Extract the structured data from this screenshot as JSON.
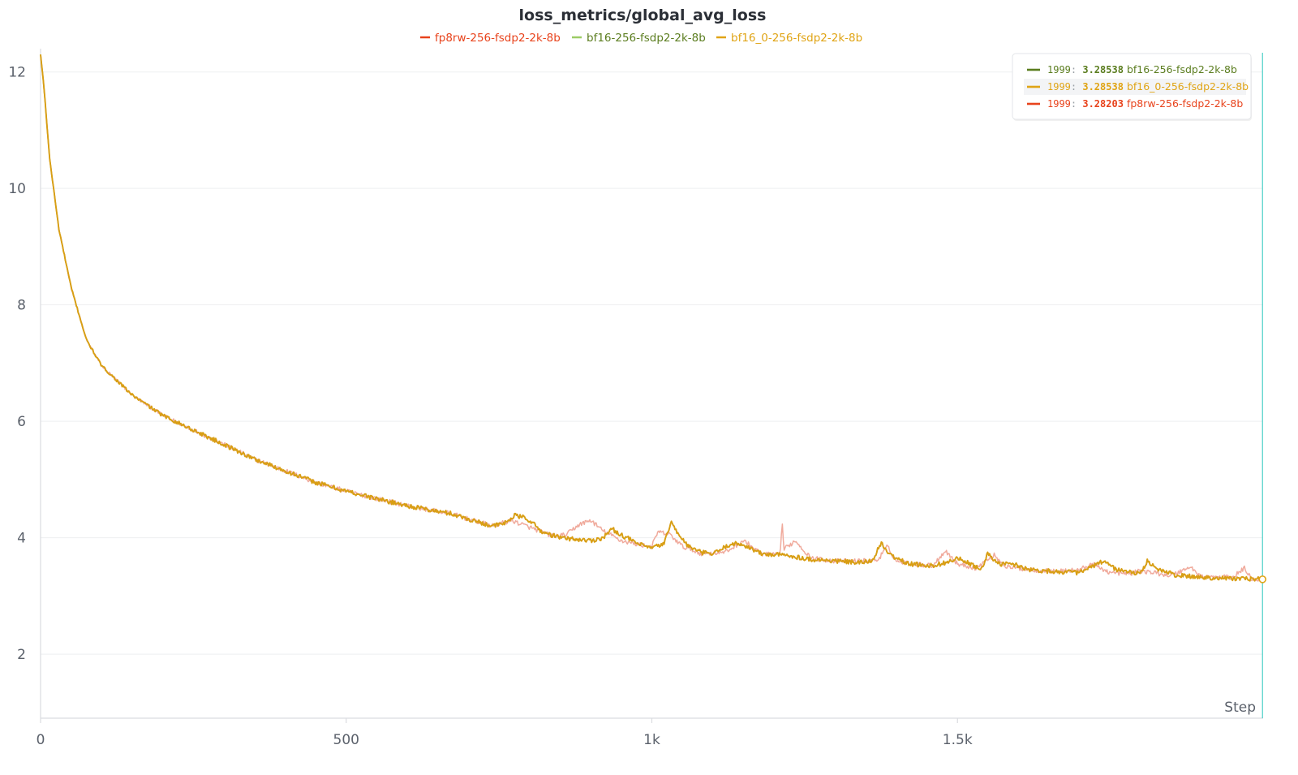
{
  "chart_data": {
    "type": "line",
    "title": "loss_metrics/global_avg_loss",
    "xlabel": "Step",
    "ylabel": "",
    "xlim": [
      0,
      2000
    ],
    "ylim": [
      0.9,
      12.4
    ],
    "x_ticks": [
      {
        "value": 0,
        "label": "0"
      },
      {
        "value": 500,
        "label": "500"
      },
      {
        "value": 1000,
        "label": "1k"
      },
      {
        "value": 1500,
        "label": "1.5k"
      }
    ],
    "y_ticks": [
      {
        "value": 2,
        "label": "2"
      },
      {
        "value": 4,
        "label": "4"
      },
      {
        "value": 6,
        "label": "6"
      },
      {
        "value": 8,
        "label": "8"
      },
      {
        "value": 10,
        "label": "10"
      },
      {
        "value": 12,
        "label": "12"
      }
    ],
    "grid": true,
    "legend_position": "top-center",
    "series": [
      {
        "name": "fp8rw-256-fsdp2-2k-8b",
        "color": "#e8431c",
        "line_color": "#f0aa9c",
        "points": [
          [
            0,
            12.3
          ],
          [
            5,
            11.8
          ],
          [
            15,
            10.5
          ],
          [
            30,
            9.3
          ],
          [
            50,
            8.3
          ],
          [
            75,
            7.4
          ],
          [
            100,
            6.95
          ],
          [
            150,
            6.45
          ],
          [
            200,
            6.1
          ],
          [
            250,
            5.85
          ],
          [
            300,
            5.6
          ],
          [
            350,
            5.35
          ],
          [
            400,
            5.15
          ],
          [
            450,
            4.95
          ],
          [
            500,
            4.8
          ],
          [
            550,
            4.67
          ],
          [
            600,
            4.55
          ],
          [
            650,
            4.45
          ],
          [
            670,
            4.42
          ],
          [
            700,
            4.32
          ],
          [
            740,
            4.2
          ],
          [
            770,
            4.3
          ],
          [
            800,
            4.18
          ],
          [
            840,
            4.02
          ],
          [
            860,
            4.05
          ],
          [
            880,
            4.22
          ],
          [
            900,
            4.3
          ],
          [
            920,
            4.12
          ],
          [
            950,
            3.95
          ],
          [
            980,
            3.88
          ],
          [
            1000,
            3.85
          ],
          [
            1010,
            4.1
          ],
          [
            1030,
            4.05
          ],
          [
            1050,
            3.85
          ],
          [
            1080,
            3.73
          ],
          [
            1120,
            3.75
          ],
          [
            1150,
            3.95
          ],
          [
            1180,
            3.72
          ],
          [
            1210,
            3.7
          ],
          [
            1213,
            4.3
          ],
          [
            1216,
            3.8
          ],
          [
            1235,
            3.95
          ],
          [
            1260,
            3.65
          ],
          [
            1300,
            3.6
          ],
          [
            1340,
            3.6
          ],
          [
            1370,
            3.62
          ],
          [
            1385,
            3.85
          ],
          [
            1400,
            3.6
          ],
          [
            1430,
            3.55
          ],
          [
            1460,
            3.52
          ],
          [
            1480,
            3.78
          ],
          [
            1500,
            3.55
          ],
          [
            1530,
            3.48
          ],
          [
            1560,
            3.7
          ],
          [
            1580,
            3.5
          ],
          [
            1620,
            3.45
          ],
          [
            1660,
            3.42
          ],
          [
            1700,
            3.45
          ],
          [
            1720,
            3.55
          ],
          [
            1750,
            3.4
          ],
          [
            1780,
            3.38
          ],
          [
            1800,
            3.43
          ],
          [
            1820,
            3.4
          ],
          [
            1850,
            3.35
          ],
          [
            1880,
            3.5
          ],
          [
            1900,
            3.33
          ],
          [
            1950,
            3.32
          ],
          [
            1970,
            3.48
          ],
          [
            1980,
            3.3
          ],
          [
            1999,
            3.28203
          ]
        ],
        "last": {
          "step": "1999",
          "value": "3.28203"
        }
      },
      {
        "name": "bf16-256-fsdp2-2k-8b",
        "color": "#5b7d1f",
        "line_color": "#9ccc65",
        "points": [
          [
            0,
            12.3
          ],
          [
            5,
            11.8
          ],
          [
            15,
            10.5
          ],
          [
            30,
            9.3
          ],
          [
            50,
            8.3
          ],
          [
            75,
            7.4
          ],
          [
            100,
            6.95
          ],
          [
            150,
            6.45
          ],
          [
            200,
            6.1
          ],
          [
            250,
            5.85
          ],
          [
            300,
            5.6
          ],
          [
            350,
            5.35
          ],
          [
            400,
            5.15
          ],
          [
            450,
            4.95
          ],
          [
            500,
            4.8
          ],
          [
            550,
            4.67
          ],
          [
            600,
            4.55
          ],
          [
            650,
            4.45
          ],
          [
            670,
            4.42
          ],
          [
            700,
            4.32
          ],
          [
            740,
            4.2
          ],
          [
            760,
            4.25
          ],
          [
            775,
            4.38
          ],
          [
            790,
            4.35
          ],
          [
            800,
            4.3
          ],
          [
            820,
            4.1
          ],
          [
            850,
            4.0
          ],
          [
            900,
            3.95
          ],
          [
            920,
            4.0
          ],
          [
            935,
            4.15
          ],
          [
            950,
            4.05
          ],
          [
            980,
            3.88
          ],
          [
            1000,
            3.82
          ],
          [
            1020,
            3.9
          ],
          [
            1033,
            4.3
          ],
          [
            1040,
            4.1
          ],
          [
            1060,
            3.85
          ],
          [
            1080,
            3.75
          ],
          [
            1100,
            3.72
          ],
          [
            1130,
            3.9
          ],
          [
            1150,
            3.88
          ],
          [
            1180,
            3.72
          ],
          [
            1220,
            3.7
          ],
          [
            1260,
            3.63
          ],
          [
            1300,
            3.6
          ],
          [
            1340,
            3.57
          ],
          [
            1360,
            3.6
          ],
          [
            1375,
            3.9
          ],
          [
            1390,
            3.7
          ],
          [
            1420,
            3.55
          ],
          [
            1460,
            3.52
          ],
          [
            1490,
            3.6
          ],
          [
            1500,
            3.65
          ],
          [
            1520,
            3.55
          ],
          [
            1540,
            3.45
          ],
          [
            1550,
            3.75
          ],
          [
            1565,
            3.55
          ],
          [
            1590,
            3.55
          ],
          [
            1620,
            3.45
          ],
          [
            1660,
            3.42
          ],
          [
            1700,
            3.4
          ],
          [
            1720,
            3.5
          ],
          [
            1740,
            3.6
          ],
          [
            1760,
            3.45
          ],
          [
            1800,
            3.38
          ],
          [
            1810,
            3.6
          ],
          [
            1830,
            3.45
          ],
          [
            1860,
            3.35
          ],
          [
            1900,
            3.32
          ],
          [
            1950,
            3.3
          ],
          [
            1999,
            3.28538
          ]
        ],
        "last": {
          "step": "1999",
          "value": "3.28538"
        }
      },
      {
        "name": "bf16_0-256-fsdp2-2k-8b",
        "color": "#e0a415",
        "line_color": "#d99e14",
        "points": [
          [
            0,
            12.3
          ],
          [
            5,
            11.8
          ],
          [
            15,
            10.5
          ],
          [
            30,
            9.3
          ],
          [
            50,
            8.3
          ],
          [
            75,
            7.4
          ],
          [
            100,
            6.95
          ],
          [
            150,
            6.45
          ],
          [
            200,
            6.1
          ],
          [
            250,
            5.85
          ],
          [
            300,
            5.6
          ],
          [
            350,
            5.35
          ],
          [
            400,
            5.15
          ],
          [
            450,
            4.95
          ],
          [
            500,
            4.8
          ],
          [
            550,
            4.67
          ],
          [
            600,
            4.55
          ],
          [
            650,
            4.45
          ],
          [
            670,
            4.42
          ],
          [
            700,
            4.32
          ],
          [
            740,
            4.2
          ],
          [
            760,
            4.25
          ],
          [
            775,
            4.38
          ],
          [
            790,
            4.35
          ],
          [
            800,
            4.3
          ],
          [
            820,
            4.1
          ],
          [
            850,
            4.0
          ],
          [
            900,
            3.95
          ],
          [
            920,
            4.0
          ],
          [
            935,
            4.15
          ],
          [
            950,
            4.05
          ],
          [
            980,
            3.88
          ],
          [
            1000,
            3.82
          ],
          [
            1020,
            3.9
          ],
          [
            1033,
            4.3
          ],
          [
            1040,
            4.1
          ],
          [
            1060,
            3.85
          ],
          [
            1080,
            3.75
          ],
          [
            1100,
            3.72
          ],
          [
            1130,
            3.9
          ],
          [
            1150,
            3.88
          ],
          [
            1180,
            3.72
          ],
          [
            1220,
            3.7
          ],
          [
            1260,
            3.63
          ],
          [
            1300,
            3.6
          ],
          [
            1340,
            3.57
          ],
          [
            1360,
            3.6
          ],
          [
            1375,
            3.9
          ],
          [
            1390,
            3.7
          ],
          [
            1420,
            3.55
          ],
          [
            1460,
            3.52
          ],
          [
            1490,
            3.6
          ],
          [
            1500,
            3.65
          ],
          [
            1520,
            3.55
          ],
          [
            1540,
            3.45
          ],
          [
            1550,
            3.75
          ],
          [
            1565,
            3.55
          ],
          [
            1590,
            3.55
          ],
          [
            1620,
            3.45
          ],
          [
            1660,
            3.42
          ],
          [
            1700,
            3.4
          ],
          [
            1720,
            3.5
          ],
          [
            1740,
            3.6
          ],
          [
            1760,
            3.45
          ],
          [
            1800,
            3.38
          ],
          [
            1810,
            3.6
          ],
          [
            1830,
            3.45
          ],
          [
            1860,
            3.35
          ],
          [
            1900,
            3.32
          ],
          [
            1950,
            3.3
          ],
          [
            1999,
            3.28538
          ]
        ],
        "last": {
          "step": "1999",
          "value": "3.28538"
        }
      }
    ],
    "tooltip": {
      "separator": ":",
      "rows": [
        {
          "series": "bf16-256-fsdp2-2k-8b",
          "step": "1999",
          "value": "3.28538",
          "color": "#5b7d1f",
          "highlighted": false
        },
        {
          "series": "bf16_0-256-fsdp2-2k-8b",
          "step": "1999",
          "value": "3.28538",
          "color": "#e0a415",
          "highlighted": true
        },
        {
          "series": "fp8rw-256-fsdp2-2k-8b",
          "step": "1999",
          "value": "3.28203",
          "color": "#e8431c",
          "highlighted": false
        }
      ]
    },
    "hover_step": 1999,
    "hover_line_color": "#4dd0c8"
  }
}
